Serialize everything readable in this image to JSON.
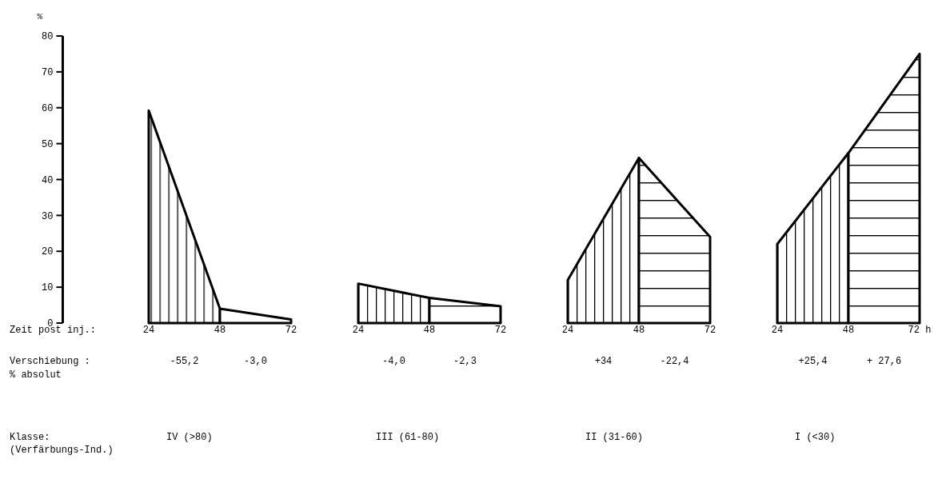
{
  "chart_data": [
    {
      "type": "other",
      "annotations": [
        "Zeit post inj.:",
        "Verschiebung :",
        "% absolut",
        "Klasse:",
        "(Verfärbungs-Ind.)"
      ]
    },
    {
      "type": "area",
      "title": "IV  (>80)",
      "ylabel": "%",
      "xlim": [
        -5,
        72
      ],
      "xticks": [
        24,
        48,
        72
      ],
      "ylim": [
        0,
        80
      ],
      "yticks": [
        0,
        10,
        20,
        30,
        40,
        50,
        60,
        70,
        80
      ],
      "annotations": [
        "-55,2",
        "-3,0"
      ],
      "series": [
        {
          "x": [
            24,
            48
          ],
          "values": [
            59.2,
            4.0
          ],
          "color": "#000000"
        },
        {
          "x": [
            48,
            72
          ],
          "values": [
            4.0,
            1.0
          ],
          "color": "#000000"
        }
      ]
    },
    {
      "type": "area",
      "title": "III  (61-80)",
      "xlim": [
        24,
        72
      ],
      "xticks": [
        24,
        48,
        72
      ],
      "ylim": [
        0,
        80
      ],
      "tick_labels": "x",
      "annotations": [
        "-4,0",
        "-2,3"
      ],
      "series": [
        {
          "x": [
            24,
            48
          ],
          "values": [
            11,
            7
          ],
          "color": "#000000"
        },
        {
          "x": [
            48,
            72
          ],
          "values": [
            7,
            4.7
          ],
          "color": "#000000"
        }
      ]
    },
    {
      "type": "area",
      "title": "II  (31-60)",
      "xlim": [
        24,
        72
      ],
      "xticks": [
        24,
        48,
        72
      ],
      "ylim": [
        0,
        80
      ],
      "tick_labels": "x",
      "annotations": [
        "+34",
        "-22,4"
      ],
      "series": [
        {
          "x": [
            24,
            48
          ],
          "values": [
            12,
            46
          ],
          "color": "#000000"
        },
        {
          "x": [
            48,
            72
          ],
          "values": [
            46,
            24
          ],
          "color": "#000000"
        }
      ]
    },
    {
      "type": "area",
      "title": "I (<30)",
      "xlim": [
        24,
        72
      ],
      "xticks": [
        24,
        48,
        {
          "value": 72,
          "label": "72 h"
        }
      ],
      "ylim": [
        0,
        80
      ],
      "tick_labels": "x",
      "annotations": [
        "+25,4",
        "+ 27,6"
      ],
      "series": [
        {
          "x": [
            24,
            48
          ],
          "values": [
            22,
            47.4
          ],
          "color": "#000000"
        },
        {
          "x": [
            48,
            72
          ],
          "values": [
            47.4,
            75
          ],
          "color": "#000000"
        }
      ]
    }
  ]
}
